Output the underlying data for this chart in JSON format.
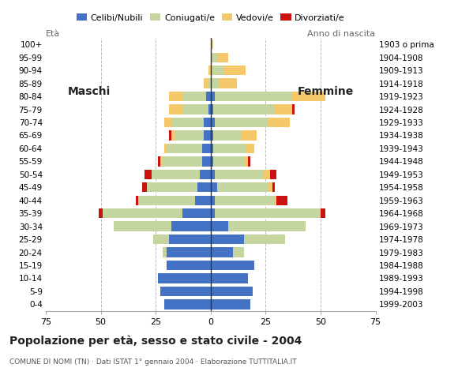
{
  "age_groups": [
    "0-4",
    "5-9",
    "10-14",
    "15-19",
    "20-24",
    "25-29",
    "30-34",
    "35-39",
    "40-44",
    "45-49",
    "50-54",
    "55-59",
    "60-64",
    "65-69",
    "70-74",
    "75-79",
    "80-84",
    "85-89",
    "90-94",
    "95-99",
    "100+"
  ],
  "birth_years": [
    "1999-2003",
    "1994-1998",
    "1989-1993",
    "1984-1988",
    "1979-1983",
    "1974-1978",
    "1969-1973",
    "1964-1968",
    "1959-1963",
    "1954-1958",
    "1949-1953",
    "1944-1948",
    "1939-1943",
    "1934-1938",
    "1929-1933",
    "1924-1928",
    "1919-1923",
    "1914-1918",
    "1909-1913",
    "1904-1908",
    "1903 o prima"
  ],
  "males": {
    "celibi": [
      21,
      23,
      24,
      20,
      20,
      19,
      18,
      13,
      7,
      6,
      5,
      4,
      4,
      3,
      3,
      1,
      2,
      0,
      0,
      0,
      0
    ],
    "coniugati": [
      0,
      0,
      0,
      0,
      2,
      7,
      26,
      36,
      26,
      23,
      22,
      18,
      16,
      13,
      15,
      12,
      11,
      1,
      0,
      0,
      0
    ],
    "vedovi": [
      0,
      0,
      0,
      0,
      0,
      0,
      0,
      0,
      0,
      0,
      0,
      1,
      1,
      2,
      3,
      6,
      6,
      2,
      1,
      0,
      0
    ],
    "divorziati": [
      0,
      0,
      0,
      0,
      0,
      0,
      0,
      2,
      1,
      2,
      3,
      1,
      0,
      1,
      0,
      0,
      0,
      0,
      0,
      0,
      0
    ]
  },
  "females": {
    "nubili": [
      18,
      19,
      17,
      20,
      10,
      15,
      8,
      2,
      2,
      3,
      2,
      1,
      1,
      1,
      2,
      1,
      2,
      0,
      0,
      0,
      0
    ],
    "coniugate": [
      0,
      0,
      0,
      0,
      5,
      19,
      35,
      48,
      27,
      23,
      22,
      14,
      15,
      13,
      24,
      28,
      35,
      4,
      6,
      3,
      0
    ],
    "vedove": [
      0,
      0,
      0,
      0,
      0,
      0,
      0,
      0,
      1,
      2,
      3,
      2,
      4,
      7,
      10,
      8,
      15,
      8,
      10,
      5,
      1
    ],
    "divorziate": [
      0,
      0,
      0,
      0,
      0,
      0,
      0,
      2,
      5,
      1,
      3,
      1,
      0,
      0,
      0,
      1,
      0,
      0,
      0,
      0,
      0
    ]
  },
  "colors": {
    "celibi": "#4472c4",
    "coniugati": "#c5d5a0",
    "vedovi": "#f5c96a",
    "divorziati": "#cc1111"
  },
  "xlim": 75,
  "title": "Popolazione per età, sesso e stato civile - 2004",
  "subtitle": "COMUNE DI NOMI (TN) · Dati ISTAT 1° gennaio 2004 · Elaborazione TUTTITALIA.IT",
  "legend_labels": [
    "Celibi/Nubili",
    "Coniugati/e",
    "Vedovi/e",
    "Divorziati/e"
  ],
  "ylabel_left": "Età",
  "ylabel_right": "Anno di nascita",
  "label_maschi": "Maschi",
  "label_femmine": "Femmine"
}
